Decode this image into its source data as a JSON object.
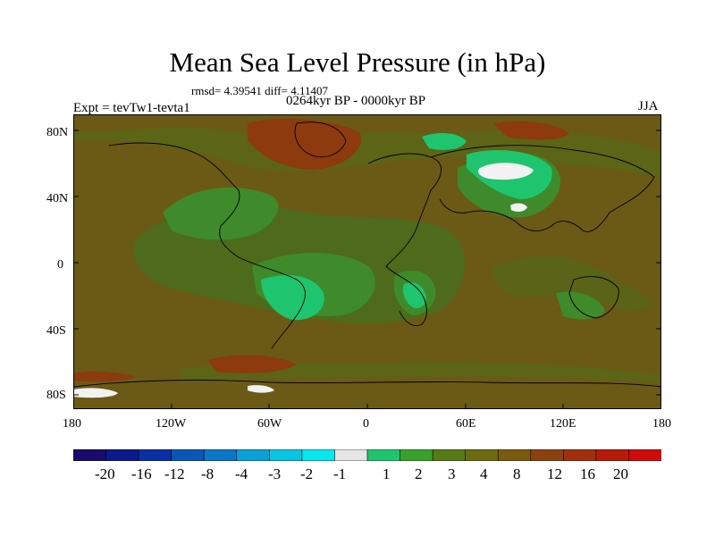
{
  "title": "Mean Sea Level Pressure (in hPa)",
  "stats": "rmsd= 4.39541  diff= 4.11407",
  "period": "0264kyr BP - 0000kyr BP",
  "experiment": "Expt = tevTw1-tevta1",
  "season": "JJA",
  "map": {
    "lat_ticks": [
      "80N",
      "40N",
      "0",
      "40S",
      "80S"
    ],
    "lon_ticks": [
      "180",
      "120W",
      "60W",
      "0",
      "60E",
      "120E",
      "180"
    ]
  },
  "colorbar": {
    "colors": [
      "#1a0a6b",
      "#0a1a8c",
      "#0a2fa6",
      "#0a55b8",
      "#0a77c8",
      "#0aa0d8",
      "#08c3e3",
      "#08e6ee",
      "#e6e6e6",
      "#1fc46e",
      "#3aa02c",
      "#557a16",
      "#6a6a10",
      "#7a5a0e",
      "#8c420e",
      "#a0300c",
      "#b81a0a",
      "#d00a0a"
    ],
    "labels": [
      "-20",
      "-16",
      "-12",
      "-8",
      "-4",
      "-3",
      "-2",
      "-1",
      "1",
      "2",
      "3",
      "4",
      "8",
      "12",
      "16",
      "20"
    ]
  }
}
